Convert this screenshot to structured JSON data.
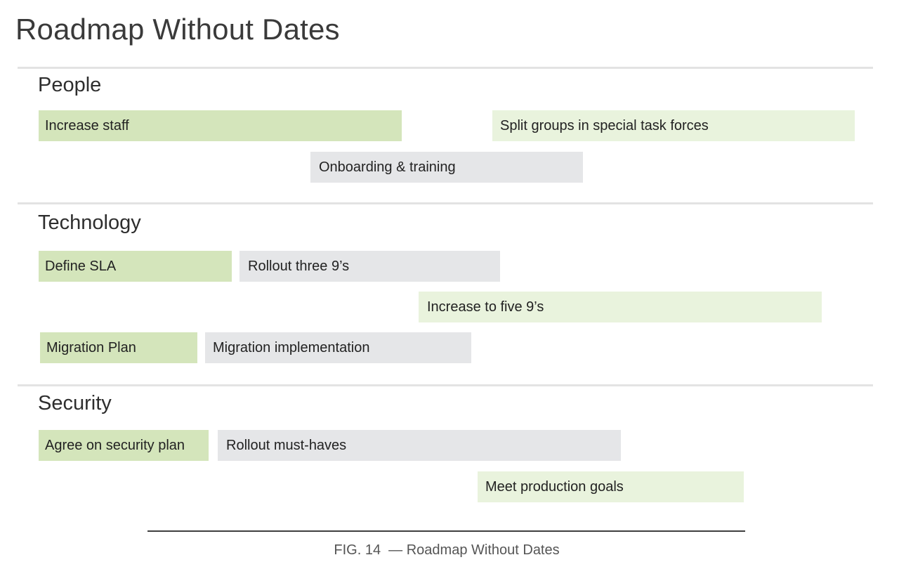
{
  "title": "Roadmap Without Dates",
  "sections": [
    {
      "name": "People",
      "items": [
        {
          "label": "Increase staff",
          "kind": "green"
        },
        {
          "label": "Split groups in special task forces",
          "kind": "light"
        },
        {
          "label": "Onboarding & training",
          "kind": "gray"
        }
      ]
    },
    {
      "name": "Technology",
      "items": [
        {
          "label": "Define SLA",
          "kind": "green"
        },
        {
          "label": "Rollout three 9’s",
          "kind": "gray"
        },
        {
          "label": "Increase to five 9’s",
          "kind": "light"
        },
        {
          "label": "Migration Plan",
          "kind": "green"
        },
        {
          "label": "Migration implementation",
          "kind": "gray"
        }
      ]
    },
    {
      "name": "Security",
      "items": [
        {
          "label": "Agree on security plan",
          "kind": "green"
        },
        {
          "label": "Rollout must-haves",
          "kind": "gray"
        },
        {
          "label": "Meet production goals",
          "kind": "light"
        }
      ]
    }
  ],
  "caption": "FIG. 14  — Roadmap Without Dates",
  "colors": {
    "green": "#d4e5bb",
    "light": "#e9f3dd",
    "gray": "#e5e6e8"
  }
}
